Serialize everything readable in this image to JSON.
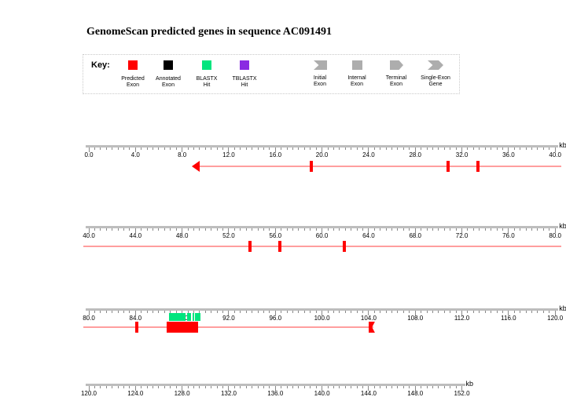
{
  "title": "GenomeScan predicted genes in sequence AC091491",
  "key": {
    "label": "Key:",
    "shape_color": "#adadad",
    "swatches": [
      {
        "label_line1": "Predicted",
        "label_line2": "Exon",
        "color": "#ff0000"
      },
      {
        "label_line1": "Annotated",
        "label_line2": "Exon",
        "color": "#000000"
      },
      {
        "label_line1": "BLASTX",
        "label_line2": "Hit",
        "color": "#00e57e"
      },
      {
        "label_line1": "TBLASTX",
        "label_line2": "Hit",
        "color": "#8a2be2"
      }
    ],
    "shapes": [
      {
        "label_line1": "Initial",
        "label_line2": "Exon",
        "shape": "initial"
      },
      {
        "label_line1": "Internal",
        "label_line2": "Exon",
        "shape": "internal"
      },
      {
        "label_line1": "Terminal",
        "label_line2": "Exon",
        "shape": "terminal"
      },
      {
        "label_line1": "Single-Exon",
        "label_line2": "Gene",
        "shape": "single"
      }
    ]
  },
  "colors": {
    "predicted_exon": "#ff0000",
    "gene_line": "#ff9e9e",
    "blastx_hit": "#00e57e",
    "ruler_line": "#bdbdbd",
    "ruler_tick": "#8a8a8a"
  },
  "chart_data": {
    "type": "genome-annotation-tracks",
    "sequence": "AC091491",
    "unit": "kb",
    "tracks": [
      {
        "range_kb": [
          0,
          40
        ],
        "unit": "kb",
        "major_tick_kb": 4,
        "minor_tick_kb": 0.5,
        "labels": [
          "0.0",
          "4.0",
          "8.0",
          "12.0",
          "16.0",
          "20.0",
          "24.0",
          "28.0",
          "32.0",
          "36.0",
          "40.0"
        ],
        "features": [
          {
            "type": "gene-line",
            "from": 8.9,
            "to": 40.5
          },
          {
            "type": "terminal-exon-left",
            "at": 8.9
          },
          {
            "type": "internal-exon",
            "at": 19.1
          },
          {
            "type": "internal-exon",
            "at": 30.8
          },
          {
            "type": "internal-exon",
            "at": 33.4
          }
        ]
      },
      {
        "range_kb": [
          40,
          80
        ],
        "unit": "kb",
        "major_tick_kb": 4,
        "minor_tick_kb": 0.5,
        "labels": [
          "40.0",
          "44.0",
          "48.0",
          "52.0",
          "56.0",
          "60.0",
          "64.0",
          "68.0",
          "72.0",
          "76.0",
          "80.0"
        ],
        "features": [
          {
            "type": "gene-line",
            "from": 39.5,
            "to": 80.5
          },
          {
            "type": "internal-exon",
            "at": 53.8
          },
          {
            "type": "internal-exon",
            "at": 56.4
          },
          {
            "type": "internal-exon",
            "at": 61.9
          }
        ]
      },
      {
        "range_kb": [
          80,
          120
        ],
        "unit": "kb",
        "major_tick_kb": 4,
        "minor_tick_kb": 0.5,
        "labels": [
          "80.0",
          "84.0",
          "88.0",
          "92.0",
          "96.0",
          "100.0",
          "104.0",
          "108.0",
          "112.0",
          "116.0",
          "120.0"
        ],
        "features": [
          {
            "type": "gene-line",
            "from": 79.5,
            "to": 104.4
          },
          {
            "type": "internal-exon",
            "at": 84.1
          },
          {
            "type": "blastx-hit",
            "from": 86.9,
            "to": 88.3
          },
          {
            "type": "blastx-hit",
            "from": 88.4,
            "to": 88.8
          },
          {
            "type": "blastx-hit",
            "from": 88.9,
            "to": 89.05
          },
          {
            "type": "blastx-hit",
            "from": 89.1,
            "to": 89.6
          },
          {
            "type": "exon-box",
            "from": 86.7,
            "to": 89.4
          },
          {
            "type": "initial-exon-left",
            "from": 104.0,
            "to": 104.5
          }
        ]
      },
      {
        "range_kb": [
          120,
          152
        ],
        "unit": "kb",
        "major_tick_kb": 4,
        "minor_tick_kb": 0.5,
        "labels": [
          "120.0",
          "124.0",
          "128.0",
          "132.0",
          "136.0",
          "140.0",
          "144.0",
          "148.0",
          "152.0"
        ],
        "features": []
      }
    ]
  }
}
